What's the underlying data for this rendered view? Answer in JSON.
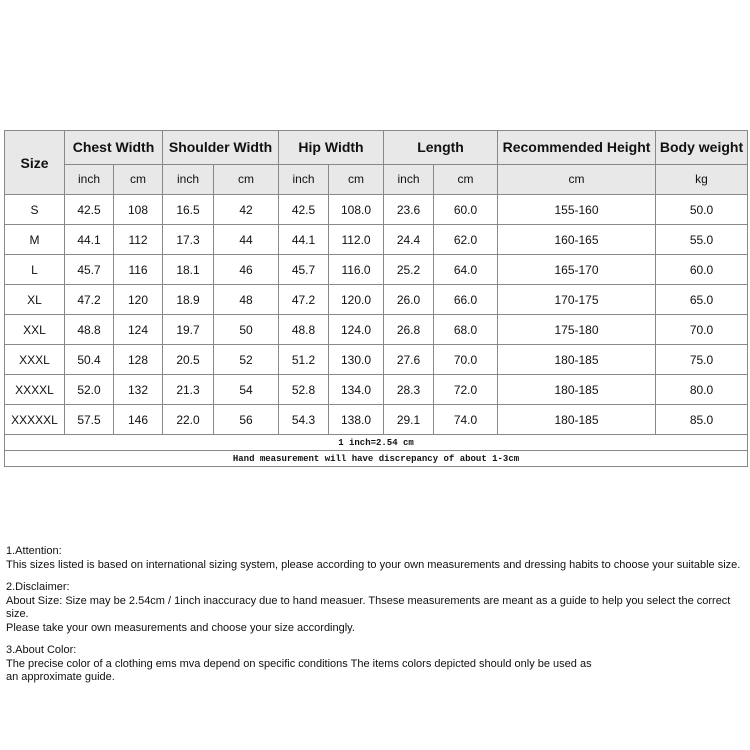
{
  "table": {
    "headers": [
      "Size",
      "Chest Width",
      "Shoulder Width",
      "Hip Width",
      "Length",
      "Recommended Height",
      "Body weight"
    ],
    "units": [
      "inch",
      "cm",
      "inch",
      "cm",
      "inch",
      "cm",
      "inch",
      "cm",
      "cm",
      "kg"
    ],
    "rows": [
      [
        "S",
        "42.5",
        "108",
        "16.5",
        "42",
        "42.5",
        "108.0",
        "23.6",
        "60.0",
        "155-160",
        "50.0"
      ],
      [
        "M",
        "44.1",
        "112",
        "17.3",
        "44",
        "44.1",
        "112.0",
        "24.4",
        "62.0",
        "160-165",
        "55.0"
      ],
      [
        "L",
        "45.7",
        "116",
        "18.1",
        "46",
        "45.7",
        "116.0",
        "25.2",
        "64.0",
        "165-170",
        "60.0"
      ],
      [
        "XL",
        "47.2",
        "120",
        "18.9",
        "48",
        "47.2",
        "120.0",
        "26.0",
        "66.0",
        "170-175",
        "65.0"
      ],
      [
        "XXL",
        "48.8",
        "124",
        "19.7",
        "50",
        "48.8",
        "124.0",
        "26.8",
        "68.0",
        "175-180",
        "70.0"
      ],
      [
        "XXXL",
        "50.4",
        "128",
        "20.5",
        "52",
        "51.2",
        "130.0",
        "27.6",
        "70.0",
        "180-185",
        "75.0"
      ],
      [
        "XXXXL",
        "52.0",
        "132",
        "21.3",
        "54",
        "52.8",
        "134.0",
        "28.3",
        "72.0",
        "180-185",
        "80.0"
      ],
      [
        "XXXXXL",
        "57.5",
        "146",
        "22.0",
        "56",
        "54.3",
        "138.0",
        "29.1",
        "74.0",
        "180-185",
        "85.0"
      ]
    ],
    "note1": "1 inch=2.54 cm",
    "note2": "Hand measurement will have discrepancy of about 1-3cm"
  },
  "notes": [
    {
      "title": "1.Attention:",
      "lines": [
        "This sizes listed is based on international sizing system, please according to your own measurements and dressing habits to choose your suitable size."
      ]
    },
    {
      "title": "2.Disclaimer:",
      "lines": [
        "About Size: Size may be 2.54cm / 1inch inaccuracy due to hand measuer. Thsese measurements are meant as a guide to help you select the correct size.",
        "Please take your own measurements and choose your size accordingly."
      ]
    },
    {
      "title": "3.About Color:",
      "lines": [
        "The precise color of a clothing ems mva depend on specific conditions The items colors depicted should only be used as",
        "an approximate guide."
      ]
    }
  ]
}
